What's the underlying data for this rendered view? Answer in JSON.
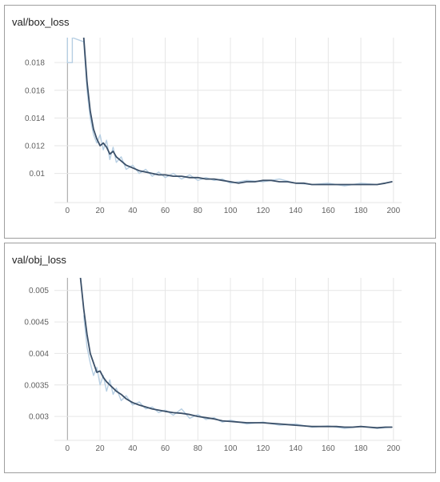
{
  "colors": {
    "smoothed": "#3b5069",
    "raw": "#b7cfe3",
    "grid": "#e6e6e6",
    "axis": "#9e9e9e"
  },
  "chart_data": [
    {
      "type": "line",
      "title": "val/box_loss",
      "xlim": [
        -8,
        205
      ],
      "ylim": [
        0.0079,
        0.0198
      ],
      "xticks": [
        0,
        20,
        40,
        60,
        80,
        100,
        120,
        140,
        160,
        180,
        200
      ],
      "xtick_labels": [
        "0",
        "20",
        "40",
        "60",
        "80",
        "100",
        "120",
        "140",
        "160",
        "180",
        "200"
      ],
      "yticks": [
        0.01,
        0.012,
        0.014,
        0.016,
        0.018
      ],
      "ytick_labels": [
        "0.01",
        "0.012",
        "0.014",
        "0.016",
        "0.018"
      ],
      "grid": true,
      "series": [
        {
          "style": "smoothed",
          "x": [
            10,
            12,
            14,
            16,
            18,
            20,
            22,
            24,
            26,
            28,
            30,
            33,
            36,
            40,
            44,
            48,
            52,
            56,
            60,
            65,
            70,
            75,
            80,
            85,
            90,
            95,
            100,
            105,
            110,
            115,
            120,
            125,
            130,
            135,
            140,
            145,
            150,
            155,
            160,
            165,
            170,
            175,
            180,
            185,
            190,
            195,
            199
          ],
          "y": [
            0.0198,
            0.0166,
            0.0145,
            0.0132,
            0.0125,
            0.012,
            0.0122,
            0.0119,
            0.0114,
            0.0116,
            0.0112,
            0.0109,
            0.0106,
            0.0104,
            0.0102,
            0.0101,
            0.01,
            0.0099,
            0.0099,
            0.0098,
            0.0098,
            0.0097,
            0.0097,
            0.0096,
            0.0096,
            0.0095,
            0.0094,
            0.0093,
            0.0094,
            0.0094,
            0.0095,
            0.0095,
            0.0094,
            0.0094,
            0.0093,
            0.0093,
            0.0092,
            0.0092,
            0.0092,
            0.0092,
            0.0092,
            0.0092,
            0.0092,
            0.0092,
            0.0092,
            0.0093,
            0.0094
          ]
        },
        {
          "style": "raw",
          "x": [
            0,
            0,
            3,
            3,
            10,
            12,
            14,
            16,
            18,
            20,
            22,
            24,
            26,
            28,
            30,
            33,
            36,
            40,
            44,
            48,
            52,
            56,
            60,
            65,
            70,
            75,
            80,
            85,
            90,
            95,
            100,
            110,
            120,
            130,
            140,
            150,
            160,
            170,
            180,
            190,
            199
          ],
          "y": [
            0.0198,
            0.018,
            0.018,
            0.0198,
            0.0195,
            0.016,
            0.014,
            0.0128,
            0.0122,
            0.0128,
            0.0117,
            0.0124,
            0.011,
            0.0119,
            0.0108,
            0.0112,
            0.0103,
            0.0106,
            0.01,
            0.0103,
            0.0098,
            0.0101,
            0.0097,
            0.01,
            0.0096,
            0.0099,
            0.0095,
            0.0097,
            0.0095,
            0.0096,
            0.0093,
            0.0095,
            0.0094,
            0.0096,
            0.0093,
            0.0092,
            0.0093,
            0.0091,
            0.0093,
            0.0092,
            0.0094
          ]
        }
      ]
    },
    {
      "type": "line",
      "title": "val/obj_loss",
      "xlim": [
        -8,
        205
      ],
      "ylim": [
        0.00262,
        0.0052
      ],
      "xticks": [
        0,
        20,
        40,
        60,
        80,
        100,
        120,
        140,
        160,
        180,
        200
      ],
      "xtick_labels": [
        "0",
        "20",
        "40",
        "60",
        "80",
        "100",
        "120",
        "140",
        "160",
        "180",
        "200"
      ],
      "yticks": [
        0.003,
        0.0035,
        0.004,
        0.0045,
        0.005
      ],
      "ytick_labels": [
        "0.003",
        "0.0035",
        "0.004",
        "0.0045",
        "0.005"
      ],
      "grid": true,
      "series": [
        {
          "style": "smoothed",
          "x": [
            8,
            10,
            12,
            14,
            16,
            18,
            20,
            22,
            24,
            26,
            28,
            30,
            33,
            36,
            40,
            44,
            48,
            52,
            56,
            60,
            65,
            70,
            75,
            80,
            85,
            90,
            95,
            100,
            105,
            110,
            115,
            120,
            125,
            130,
            135,
            140,
            145,
            150,
            155,
            160,
            165,
            170,
            175,
            180,
            185,
            190,
            195,
            199
          ],
          "y": [
            0.0052,
            0.0047,
            0.0043,
            0.004,
            0.00385,
            0.0037,
            0.00372,
            0.00362,
            0.00355,
            0.0035,
            0.00345,
            0.0034,
            0.00335,
            0.00328,
            0.00322,
            0.00318,
            0.00315,
            0.00312,
            0.0031,
            0.00308,
            0.00306,
            0.00305,
            0.00303,
            0.003,
            0.00298,
            0.00296,
            0.00293,
            0.00292,
            0.00291,
            0.0029,
            0.0029,
            0.0029,
            0.00289,
            0.00288,
            0.00287,
            0.00286,
            0.00285,
            0.00284,
            0.00284,
            0.00284,
            0.00284,
            0.00283,
            0.00283,
            0.00284,
            0.00283,
            0.00282,
            0.00283,
            0.00283
          ]
        },
        {
          "style": "raw",
          "x": [
            10,
            12,
            14,
            16,
            18,
            20,
            22,
            24,
            26,
            28,
            30,
            33,
            36,
            40,
            44,
            48,
            52,
            56,
            60,
            65,
            70,
            75,
            80,
            85,
            90,
            95,
            100,
            110,
            120,
            130,
            140,
            150,
            160,
            170,
            180,
            190,
            199
          ],
          "y": [
            0.0046,
            0.0041,
            0.00385,
            0.00365,
            0.00378,
            0.0035,
            0.00365,
            0.0034,
            0.00358,
            0.00335,
            0.00345,
            0.00325,
            0.00333,
            0.00318,
            0.00323,
            0.00312,
            0.00315,
            0.00306,
            0.0031,
            0.00302,
            0.00312,
            0.00297,
            0.00303,
            0.00295,
            0.00298,
            0.00291,
            0.00294,
            0.00288,
            0.00291,
            0.00286,
            0.00288,
            0.00283,
            0.00285,
            0.00281,
            0.00284,
            0.00281,
            0.00283
          ]
        }
      ]
    }
  ]
}
